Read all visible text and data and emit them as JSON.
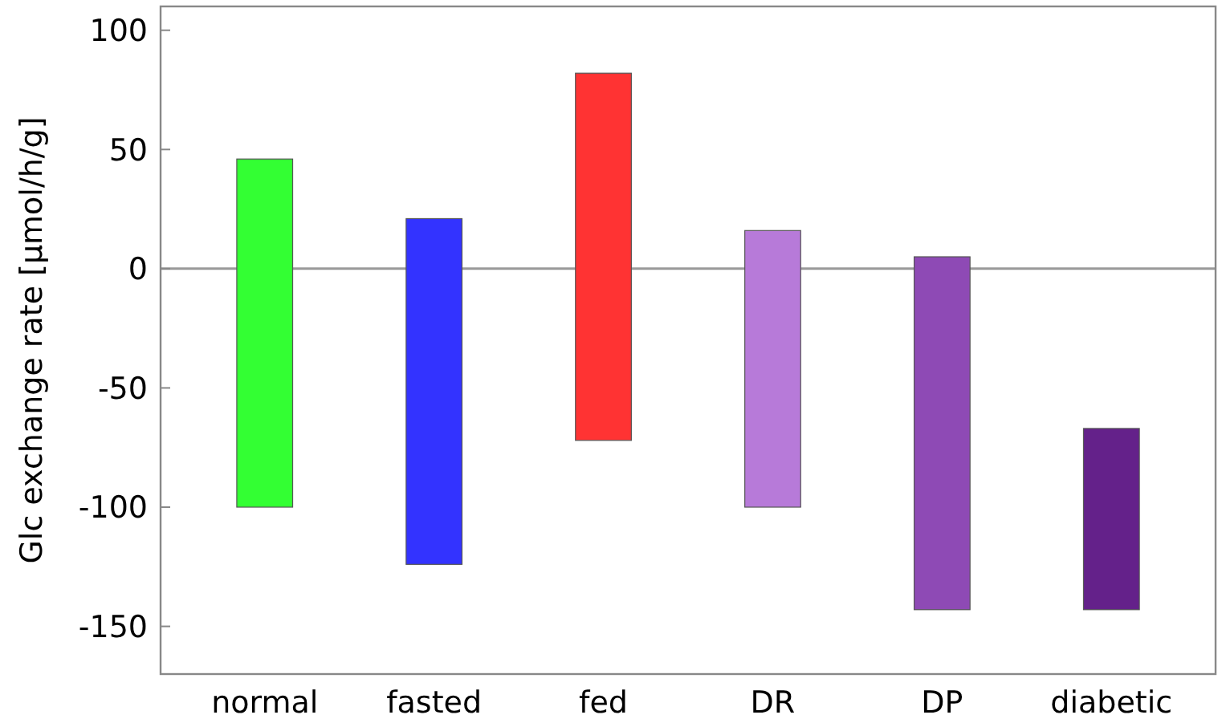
{
  "chart_data": {
    "type": "bar",
    "ylabel": "Glc exchange rate [µmol/h/g]",
    "categories": [
      "normal",
      "fasted",
      "fed",
      "DR",
      "DP",
      "diabetic"
    ],
    "base": [
      -100,
      -124,
      -72,
      -100,
      -143,
      -143
    ],
    "values": [
      146,
      145,
      154,
      116,
      148,
      76
    ],
    "colors": [
      "#33ff33",
      "#3333ff",
      "#ff3333",
      "#b77ad9",
      "#8e4ab5",
      "#64218a"
    ],
    "ylim": [
      -170,
      110
    ],
    "yticks": [
      -150,
      -100,
      -50,
      0,
      50,
      100
    ],
    "ref_lines": [
      {
        "axis": "y",
        "value": 0,
        "color": "#999999"
      }
    ],
    "grid": false
  }
}
